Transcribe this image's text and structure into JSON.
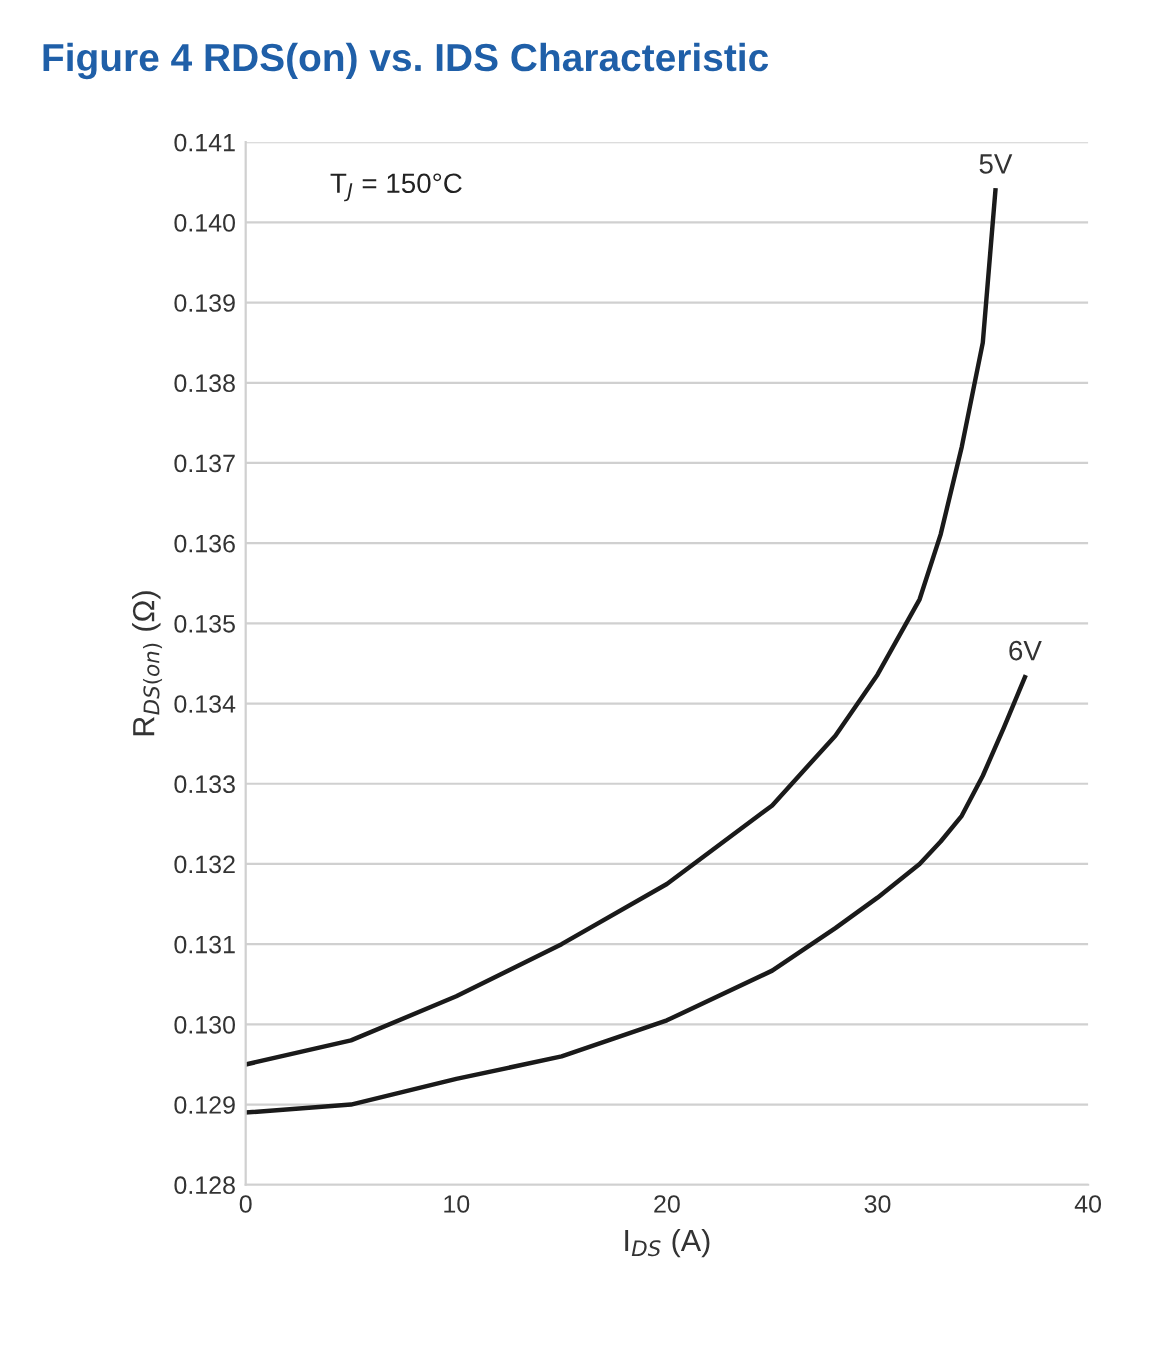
{
  "chart_data": {
    "type": "line",
    "title": "Figure 4 RDS(on) vs. IDS Characteristic",
    "xlabel": "I$_{DS}$ (A)",
    "ylabel": "R$_{DS(on)}$ (Ω)",
    "annotations": [
      "T$_{J}$ = 150°C"
    ],
    "series": [
      {
        "name": "5V",
        "color": "#1a1a1a",
        "x": [
          0,
          5,
          10,
          15,
          20,
          25,
          28,
          30,
          32,
          33,
          34,
          35,
          35.6
        ],
        "values": [
          0.1295,
          0.1298,
          0.13035,
          0.131,
          0.13175,
          0.13273,
          0.1336,
          0.13436,
          0.1353,
          0.13611,
          0.1372,
          0.1385,
          0.1404
        ]
      },
      {
        "name": "6V",
        "color": "#1a1a1a",
        "x": [
          0,
          5,
          10,
          15,
          20,
          25,
          28,
          30,
          32,
          33,
          34,
          35,
          36,
          37
        ],
        "values": [
          0.1289,
          0.129,
          0.12932,
          0.1296,
          0.13005,
          0.13067,
          0.1312,
          0.13158,
          0.132,
          0.13228,
          0.1326,
          0.1331,
          0.1337,
          0.13433
        ]
      }
    ],
    "xlim": [
      0,
      40
    ],
    "xticks": [
      0,
      10,
      20,
      30,
      40
    ],
    "ylim": [
      0.128,
      0.141
    ],
    "yticks": [
      0.128,
      0.129,
      {
        "value": 0.13,
        "label": "0.130"
      },
      0.131,
      0.132,
      0.133,
      0.134,
      0.135,
      0.136,
      0.137,
      0.138,
      0.139,
      {
        "value": 0.14,
        "label": "0.140"
      },
      0.141
    ],
    "grid": "y",
    "legend": false,
    "marker": "none",
    "line_style": "solid"
  }
}
